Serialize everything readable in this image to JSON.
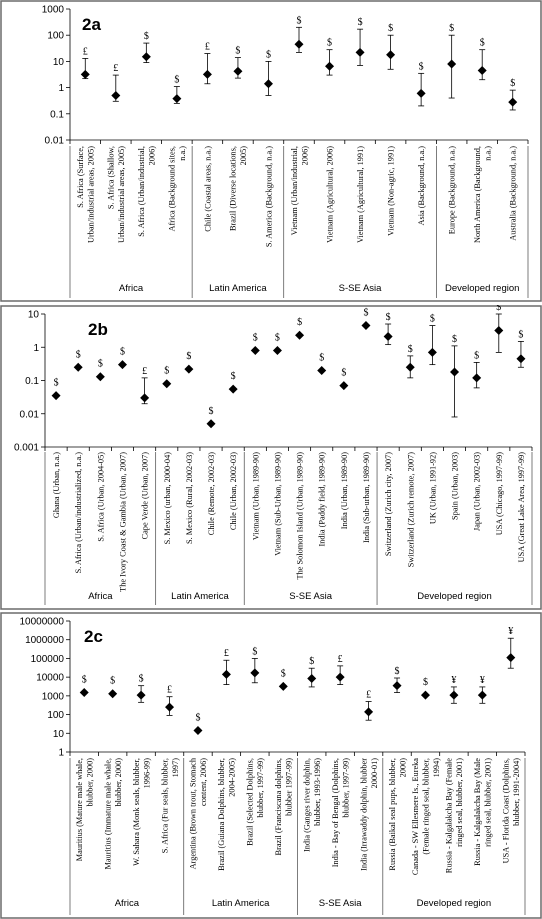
{
  "chart_data": [
    {
      "type": "scatter",
      "title": "2a",
      "scale": "log",
      "ylim": [
        0.01,
        1000
      ],
      "yticks": [
        "0.01",
        "0.1",
        "1",
        "10",
        "100",
        "1000"
      ],
      "categories": [
        "S. Africa (Surface, Urban/industrial areas, 2005)",
        "S. Africa (Shallow, Urban/industrial areas, 2005)",
        "S. Africa (Urban/industrial, 2006)",
        "Africa (Background sites, n.a.)",
        "Chile (Coastal areas, n.a.)",
        "Brazil (Diverse locations, 2005)",
        "S. America (Background, n.a.)",
        "Vietnam (Urban/industrial, 2006)",
        "Vietnam (Agricultural, 2006)",
        "Vietnam (Agricultural, 1991)",
        "Vietnam (Non-agric, 1991)",
        "Asia (Background, n.a.)",
        "Europe (Background, n.a.)",
        "North America (Background, n.a.)",
        "Australia (Background, n.a.)"
      ],
      "values": [
        3.2,
        0.5,
        15,
        0.38,
        3.2,
        4.2,
        1.4,
        45,
        6.5,
        22,
        18,
        0.6,
        8,
        4.5,
        0.28
      ],
      "err_low": [
        2.2,
        0.3,
        9,
        0.25,
        1.4,
        2.3,
        0.5,
        22,
        3,
        7,
        5,
        0.2,
        0.4,
        2,
        0.14
      ],
      "err_high": [
        13,
        3,
        50,
        1.1,
        20,
        14,
        10,
        200,
        28,
        170,
        100,
        3.5,
        100,
        28,
        0.8
      ],
      "symbols": [
        "£",
        "£",
        "$",
        "$",
        "£",
        "$",
        "$",
        "$",
        "$",
        "$",
        "$",
        "$",
        "$",
        "$",
        "$"
      ],
      "groups": [
        {
          "label": "Africa",
          "start": 0,
          "end": 3
        },
        {
          "label": "Latin America",
          "start": 4,
          "end": 6
        },
        {
          "label": "S-SE Asia",
          "start": 7,
          "end": 11
        },
        {
          "label": "Developed region",
          "start": 12,
          "end": 14
        }
      ]
    },
    {
      "type": "scatter",
      "title": "2b",
      "scale": "log",
      "ylim": [
        0.001,
        10
      ],
      "yticks": [
        "0.001",
        "0.01",
        "0.1",
        "1",
        "10"
      ],
      "categories": [
        "Ghana (Urban, n.a.)",
        "S. Africa (Urban/industrialized, n.a.)",
        "S. Africa (Urban, 2004-05)",
        "The Ivory Coast & Gambia (Urban, 2007)",
        "Cape Verde (Urban, 2007)",
        "S. Mexico (urban, 2000-04)",
        "S. Mexico (Rural, 2002-03)",
        "Chile (Remote, 2002-03)",
        "Chile (Urban, 2002-03)",
        "Vietnam (Urban, 1989-90)",
        "Vietnam (Sub-Urban, 1989-90)",
        "The Solomon Island (Urban, 1989-90)",
        "India (Paddy field, 1989-90)",
        "India (Urban, 1989-90)",
        "India (Sub-urban, 1989-90)",
        "Switzerland (Zurich city, 2007)",
        "Switzerland (Zurich remote, 2007)",
        "UK (Urban, 1991-92)",
        "Spain (Urban, 2003)",
        "Japan (Urban, 2002-03)",
        "USA (Chicago, 1997-99)",
        "USA (Great Lake Area, 1997-99)"
      ],
      "values": [
        0.035,
        0.25,
        0.13,
        0.3,
        0.03,
        0.08,
        0.22,
        0.005,
        0.055,
        0.8,
        0.8,
        2.3,
        0.2,
        0.07,
        4.5,
        2.1,
        0.25,
        0.7,
        0.18,
        0.12,
        3.2,
        0.45
      ],
      "err_low": [
        null,
        null,
        null,
        null,
        0.02,
        null,
        null,
        null,
        null,
        null,
        null,
        null,
        null,
        null,
        null,
        1.2,
        0.12,
        0.3,
        0.008,
        0.06,
        0.7,
        0.25
      ],
      "err_high": [
        null,
        null,
        null,
        null,
        0.12,
        null,
        null,
        null,
        null,
        null,
        null,
        null,
        null,
        null,
        null,
        5,
        0.55,
        4.5,
        1.1,
        0.35,
        10,
        1.5
      ],
      "symbols": [
        "$",
        "$",
        "$",
        "$",
        "£",
        "$",
        "$",
        "$",
        "$",
        "$",
        "$",
        "$",
        "$",
        "$",
        "$",
        "$",
        "$",
        "$",
        "$",
        "$",
        "$",
        "$"
      ],
      "groups": [
        {
          "label": "Africa",
          "start": 0,
          "end": 4
        },
        {
          "label": "Latin America",
          "start": 5,
          "end": 8
        },
        {
          "label": "S-SE Asia",
          "start": 9,
          "end": 14
        },
        {
          "label": "Developed region",
          "start": 15,
          "end": 21
        }
      ]
    },
    {
      "type": "scatter",
      "title": "2c",
      "scale": "log",
      "ylim": [
        1,
        10000000
      ],
      "yticks": [
        "1",
        "10",
        "100",
        "1000",
        "10000",
        "100000",
        "1000000",
        "10000000"
      ],
      "categories": [
        "Mauritius (Mature male whale, blubber, 2000)",
        "Mauritius (Immature male whale, blubber, 2000)",
        "W. Sahara (Monk seals, blubber, 1996-99)",
        "S. Africa (Fur seals, blubber, 1997)",
        "Argentina (Brown trout, Stomach content, 2006)",
        "Brazil (Guiana Dolphins, blubber, 2004-2005)",
        "Brazil (Selected Dolphins, blubber, 1997-99)",
        "Brazil (Franciscana dolphins, blubber 1997-99)",
        "India (Ganges river dolphin, blubber, 1993-1996)",
        "India - Bay of Bengal (Dolphins, blubber, 1997-99)",
        "India (Irrawaddy dolphin, blubber 2000-01)",
        "Russia (Baikal seal pups, blubber, 2000)",
        "Canada - SW Ellesmere Is., Eureka (Female ringed seal, blubber, 1994)",
        "Russia - Kalgalakcha Bay (Female ringed seal, blubber, 2001)",
        "Russia - Kalgalakcha Bay (Male ringed seal, blubber, 2001)",
        "USA - Florida Coast (Dolphins, blubber, 1991-2004)"
      ],
      "values": [
        1500,
        1300,
        1100,
        250,
        14,
        14000,
        17000,
        3200,
        8500,
        10000,
        140,
        3500,
        1100,
        1100,
        1100,
        110000
      ],
      "err_low": [
        null,
        null,
        450,
        90,
        null,
        4000,
        5000,
        null,
        3000,
        4000,
        50,
        1500,
        null,
        400,
        400,
        30000
      ],
      "err_high": [
        null,
        null,
        3500,
        900,
        null,
        80000,
        100000,
        null,
        30000,
        40000,
        500,
        9000,
        null,
        3000,
        3000,
        1200000
      ],
      "symbols": [
        "$",
        "$",
        "$",
        "£",
        "$",
        "£",
        "$",
        "$",
        "$",
        "£",
        "£",
        "$",
        "$",
        "¥",
        "¥",
        "¥"
      ],
      "groups": [
        {
          "label": "Africa",
          "start": 0,
          "end": 3
        },
        {
          "label": "Latin America",
          "start": 4,
          "end": 7
        },
        {
          "label": "S-SE Asia",
          "start": 8,
          "end": 10
        },
        {
          "label": "Developed region",
          "start": 11,
          "end": 15
        }
      ]
    }
  ]
}
